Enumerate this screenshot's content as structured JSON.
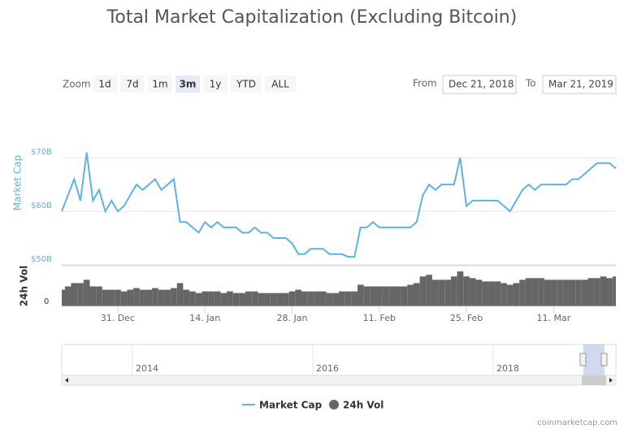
{
  "chart_data": {
    "type": "line",
    "title": "Total Market Capitalization (Excluding Bitcoin)",
    "range_selector": {
      "label": "Zoom",
      "buttons": [
        "1d",
        "7d",
        "1m",
        "3m",
        "1y",
        "YTD",
        "ALL"
      ],
      "selected": 3,
      "from_label": "From",
      "from": "Dec 21, 2018",
      "to_label": "To",
      "to": "Mar 21, 2019"
    },
    "y_label": "Market Cap",
    "y2_label": "24h Vol",
    "xlim": [
      "2018-12-22",
      "2019-03-21"
    ],
    "xticks": [
      {
        "value": "2018-12-31",
        "label": "31. Dec"
      },
      {
        "value": "2019-01-14",
        "label": "14. Jan"
      },
      {
        "value": "2019-01-28",
        "label": "28. Jan"
      },
      {
        "value": "2019-02-11",
        "label": "11. Feb"
      },
      {
        "value": "2019-02-25",
        "label": "25. Feb"
      },
      {
        "value": "2019-03-11",
        "label": "11. Mar"
      }
    ],
    "ylim": [
      50,
      77
    ],
    "yticks": [
      {
        "value": 50,
        "label": "$50B"
      },
      {
        "value": 60,
        "label": "$60B"
      },
      {
        "value": 70,
        "label": "$70B"
      }
    ],
    "y2lim": [
      0,
      12
    ],
    "y2ticks": [
      0
    ],
    "x": [
      "2018-12-22",
      "2018-12-23",
      "2018-12-24",
      "2018-12-25",
      "2018-12-26",
      "2018-12-27",
      "2018-12-28",
      "2018-12-29",
      "2018-12-30",
      "2018-12-31",
      "2019-01-01",
      "2019-01-02",
      "2019-01-03",
      "2019-01-04",
      "2019-01-05",
      "2019-01-06",
      "2019-01-07",
      "2019-01-08",
      "2019-01-09",
      "2019-01-10",
      "2019-01-11",
      "2019-01-12",
      "2019-01-13",
      "2019-01-14",
      "2019-01-15",
      "2019-01-16",
      "2019-01-17",
      "2019-01-18",
      "2019-01-19",
      "2019-01-20",
      "2019-01-21",
      "2019-01-22",
      "2019-01-23",
      "2019-01-24",
      "2019-01-25",
      "2019-01-26",
      "2019-01-27",
      "2019-01-28",
      "2019-01-29",
      "2019-01-30",
      "2019-01-31",
      "2019-02-01",
      "2019-02-02",
      "2019-02-03",
      "2019-02-04",
      "2019-02-05",
      "2019-02-06",
      "2019-02-07",
      "2019-02-08",
      "2019-02-09",
      "2019-02-10",
      "2019-02-11",
      "2019-02-12",
      "2019-02-13",
      "2019-02-14",
      "2019-02-15",
      "2019-02-16",
      "2019-02-17",
      "2019-02-18",
      "2019-02-19",
      "2019-02-20",
      "2019-02-21",
      "2019-02-22",
      "2019-02-23",
      "2019-02-24",
      "2019-02-25",
      "2019-02-26",
      "2019-02-27",
      "2019-02-28",
      "2019-03-01",
      "2019-03-02",
      "2019-03-03",
      "2019-03-04",
      "2019-03-05",
      "2019-03-06",
      "2019-03-07",
      "2019-03-08",
      "2019-03-09",
      "2019-03-10",
      "2019-03-11",
      "2019-03-12",
      "2019-03-13",
      "2019-03-14",
      "2019-03-15",
      "2019-03-16",
      "2019-03-17",
      "2019-03-18",
      "2019-03-19",
      "2019-03-20",
      "2019-03-21"
    ],
    "series": [
      {
        "name": "Market Cap",
        "color": "#5bb3e6",
        "values": [
          60,
          63,
          66,
          62,
          71,
          62,
          64,
          60,
          62,
          60,
          61,
          63,
          65,
          64,
          65,
          66,
          64,
          65,
          66,
          58,
          58,
          57,
          56,
          58,
          57,
          58,
          57,
          57,
          57,
          56,
          56,
          57,
          56,
          56,
          55,
          55,
          55,
          54,
          52,
          52,
          53,
          53,
          53,
          52,
          52,
          52,
          51.5,
          51.5,
          57,
          57,
          58,
          57,
          57,
          57,
          57,
          57,
          57,
          58,
          63,
          65,
          64,
          65,
          65,
          65,
          70,
          61,
          62,
          62,
          62,
          62,
          62,
          61,
          60,
          62,
          64,
          65,
          64,
          65,
          65,
          65,
          65,
          65,
          66,
          66,
          67,
          68,
          69,
          69,
          69,
          68
        ]
      },
      {
        "name": "24h Vol",
        "color": "#666666",
        "axis": "y2",
        "values": [
          5,
          6,
          7,
          7,
          8,
          6,
          6,
          5,
          5,
          5,
          4.5,
          5,
          5.5,
          5,
          5,
          5.5,
          5,
          5,
          5.5,
          7,
          5,
          4.5,
          4,
          4.5,
          4.5,
          4.5,
          4,
          4.5,
          4,
          4,
          4.5,
          4.5,
          4,
          4,
          4,
          4,
          4,
          4.5,
          5,
          4.5,
          4.5,
          4.5,
          4.5,
          4,
          4,
          4.5,
          4.5,
          4.5,
          6.5,
          6,
          6,
          6,
          6,
          6,
          6,
          6,
          6.5,
          7,
          9,
          9.5,
          8,
          8,
          8,
          9,
          10.5,
          9,
          8.5,
          8,
          7.5,
          7.5,
          7.5,
          7,
          6.5,
          7,
          8,
          8.5,
          8.5,
          8.5,
          8,
          8,
          8,
          8,
          8,
          8,
          8,
          8.5,
          8.5,
          9,
          8.5,
          9
        ]
      }
    ],
    "navigator": {
      "labels": [
        "2014",
        "2016",
        "2018"
      ]
    },
    "credit": "coinmarketcap.com"
  }
}
